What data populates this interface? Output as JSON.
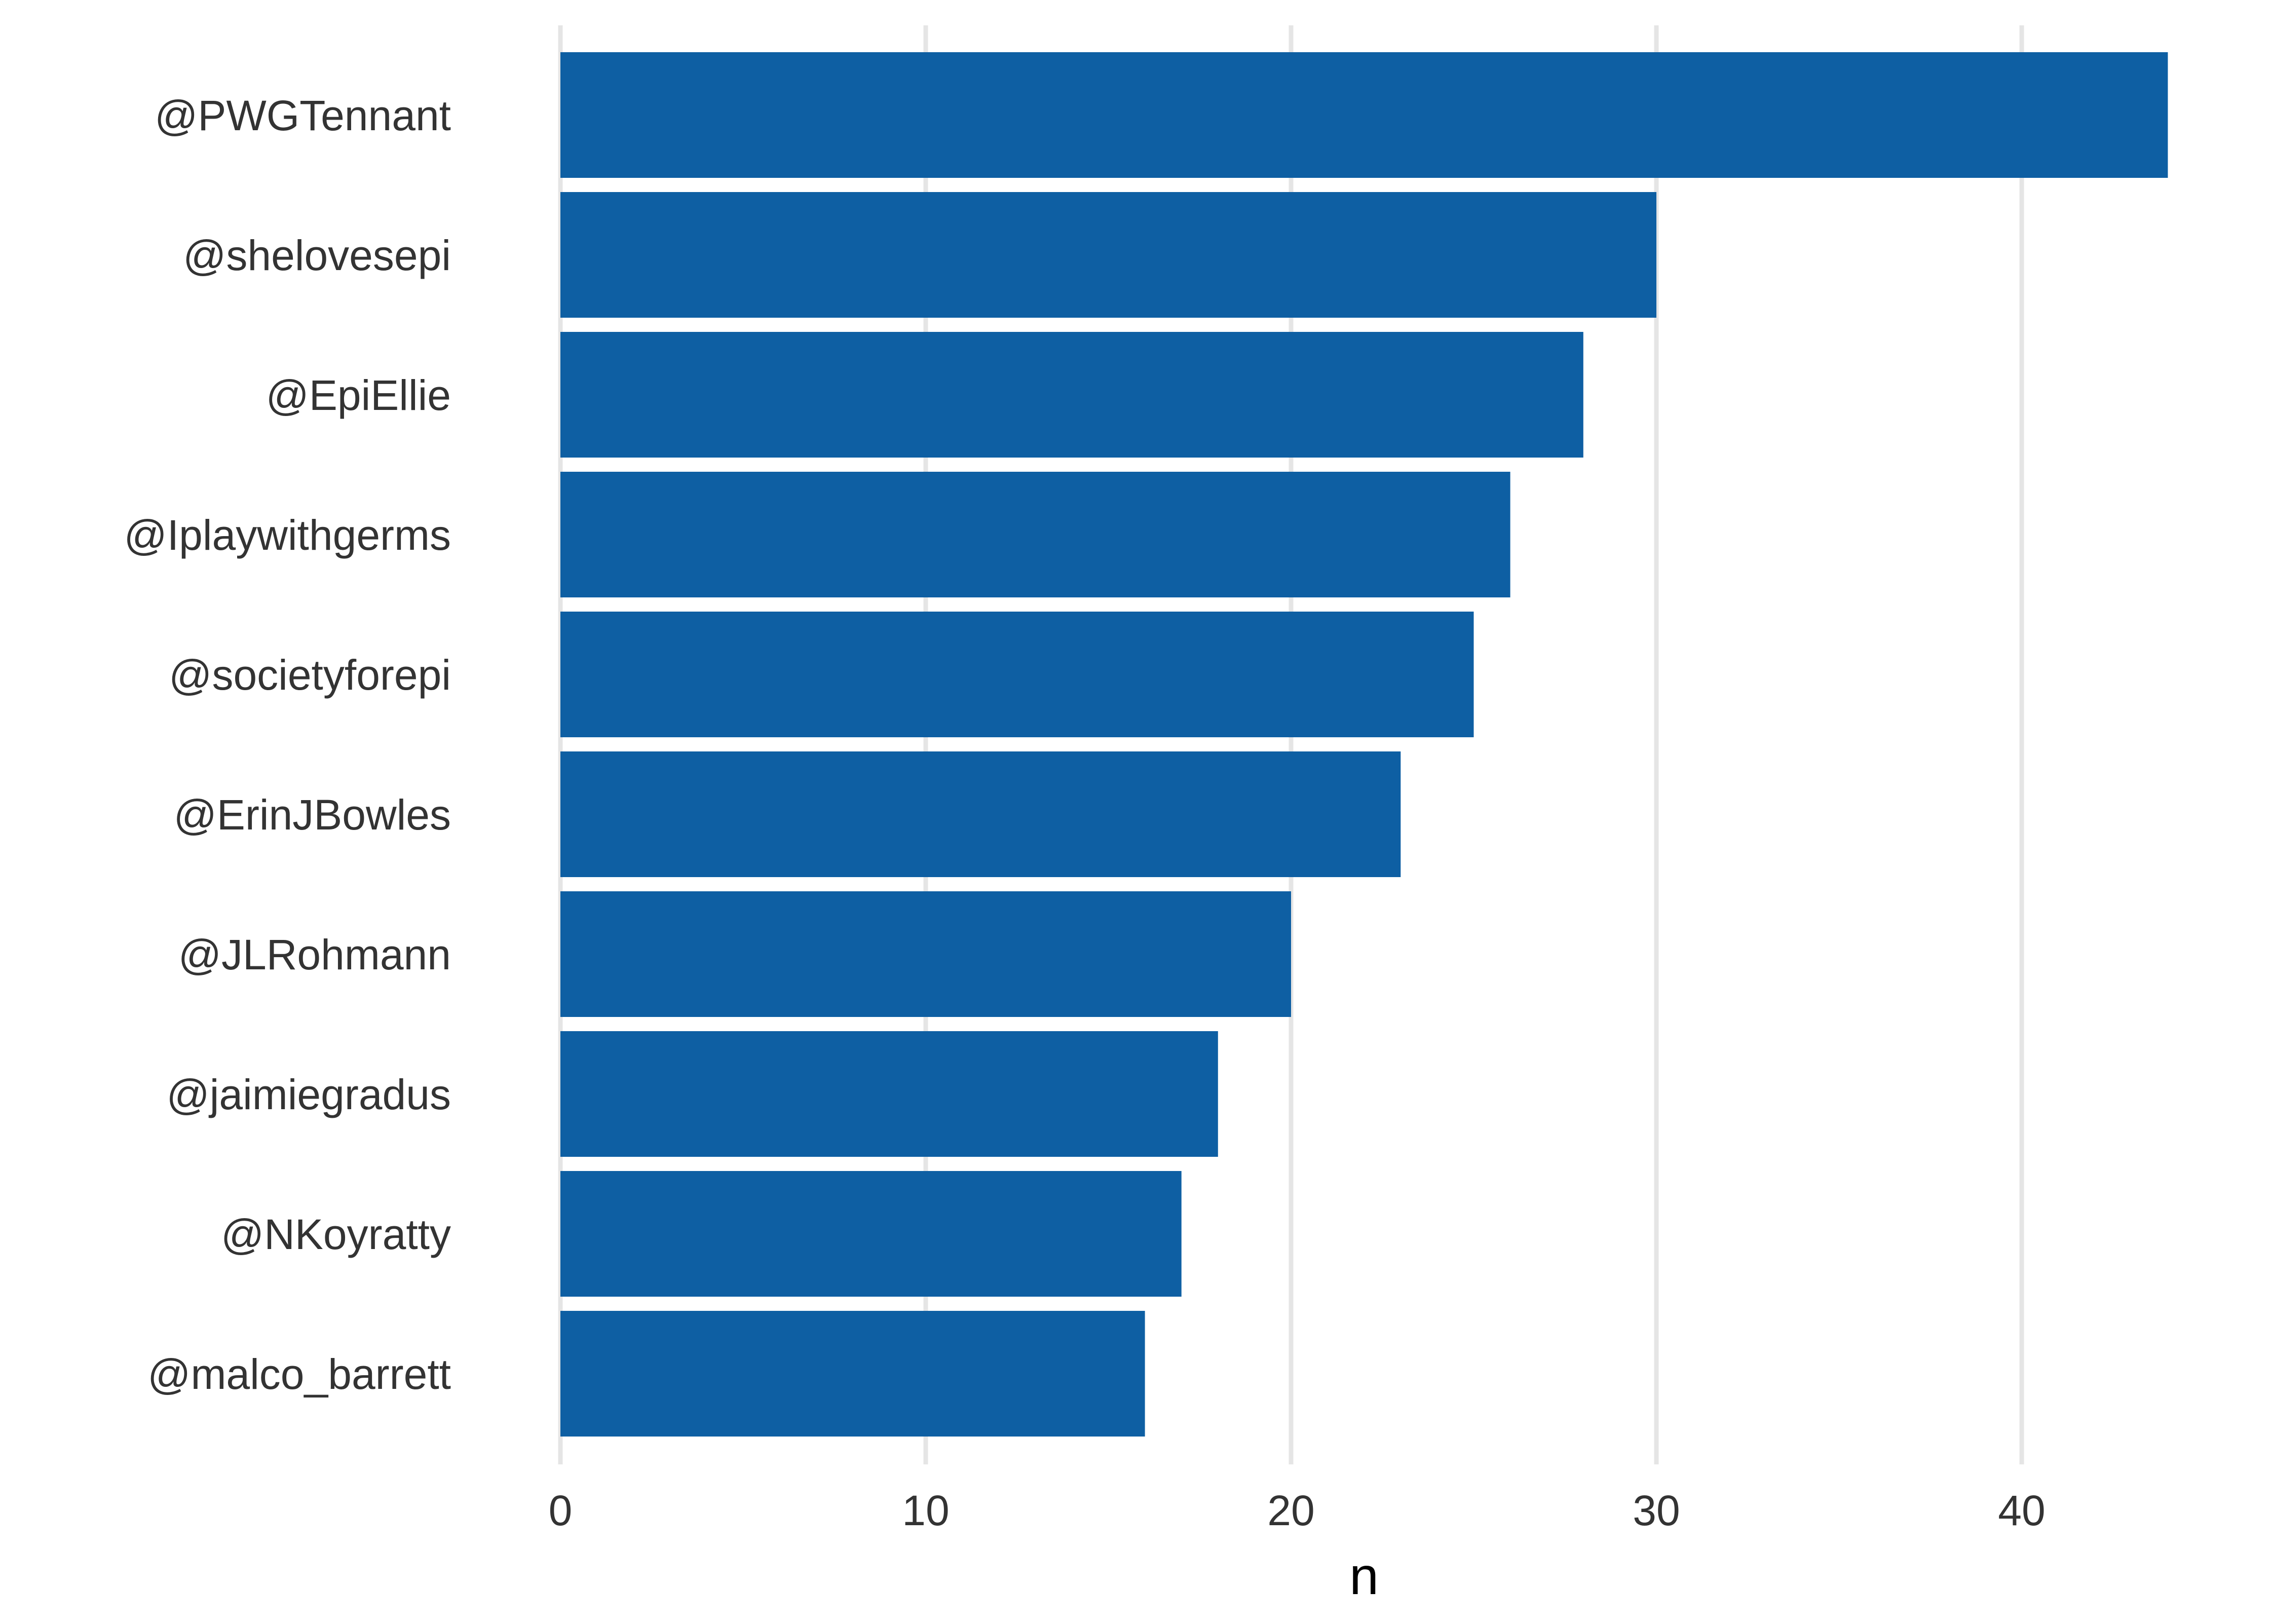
{
  "chart_data": {
    "type": "bar",
    "orientation": "horizontal",
    "categories": [
      "@PWGTennant",
      "@shelovesepi",
      "@EpiEllie",
      "@Iplaywithgerms",
      "@societyforepi",
      "@ErinJBowles",
      "@JLRohmann",
      "@jaimiegradus",
      "@NKoyratty",
      "@malco_barrett"
    ],
    "values": [
      44,
      30,
      28,
      26,
      25,
      23,
      20,
      18,
      17,
      16
    ],
    "title": "",
    "xlabel": "n",
    "ylabel": "",
    "xlim": [
      0,
      45
    ],
    "xticks": [
      0,
      10,
      20,
      30,
      40
    ],
    "xtick_labels": [
      "0",
      "10",
      "20",
      "30",
      "40"
    ],
    "grid": "vertical major gridlines",
    "legend": "none",
    "colors": {
      "bar": "#0e5fa3",
      "grid": "#e5e5e5",
      "tick_text": "#333333",
      "axis_title": "#000000",
      "background": "#ffffff"
    }
  }
}
